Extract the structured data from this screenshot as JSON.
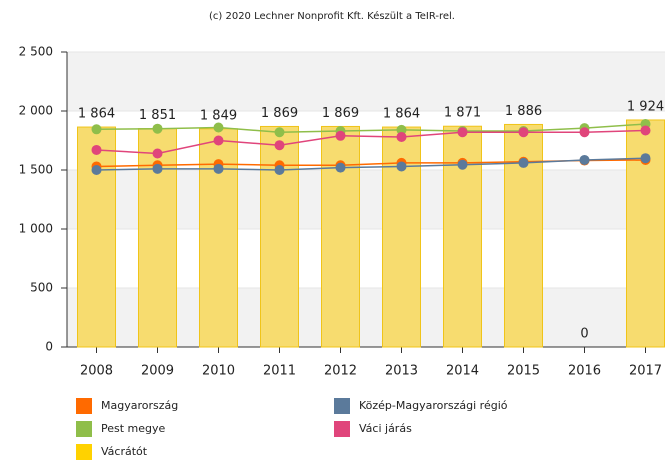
{
  "chart_data": {
    "type": "bar",
    "title": "(c) 2020 Lechner Nonprofit Kft. Készült a TeIR-rel.",
    "categories": [
      "2008",
      "2009",
      "2010",
      "2011",
      "2012",
      "2013",
      "2014",
      "2015",
      "2016",
      "2017"
    ],
    "series": [
      {
        "name": "Magyarország",
        "type": "line",
        "color": "#ff6a00",
        "values": [
          1530,
          1540,
          1550,
          1540,
          1540,
          1560,
          1560,
          1570,
          1580,
          1585
        ]
      },
      {
        "name": "Közép-Magyarországi régió",
        "type": "line",
        "color": "#5b7a9b",
        "values": [
          1500,
          1510,
          1510,
          1500,
          1520,
          1530,
          1545,
          1560,
          1585,
          1600
        ]
      },
      {
        "name": "Pest megye",
        "type": "line",
        "color": "#8fbe4a",
        "values": [
          1845,
          1850,
          1860,
          1820,
          1830,
          1840,
          1830,
          1830,
          1855,
          1890
        ]
      },
      {
        "name": "Váci járás",
        "type": "line",
        "color": "#e0457b",
        "values": [
          1670,
          1640,
          1750,
          1710,
          1790,
          1780,
          1820,
          1820,
          1820,
          1835
        ]
      },
      {
        "name": "Vácrátót",
        "type": "bar",
        "color": "#f7dc6f",
        "values": [
          1864,
          1851,
          1849,
          1869,
          1869,
          1864,
          1871,
          1886,
          0,
          1924
        ],
        "value_labels": [
          "1 864",
          "1 851",
          "1 849",
          "1 869",
          "1 869",
          "1 864",
          "1 871",
          "1 886",
          "0",
          "1 924"
        ]
      }
    ],
    "ylim": [
      0,
      2500
    ],
    "yticks": [
      0,
      500,
      {
        "value": 1000,
        "label": "1 000"
      },
      {
        "value": 1500,
        "label": "1 500"
      },
      {
        "value": 2000,
        "label": "2 000"
      },
      {
        "value": 2500,
        "label": "2 500"
      }
    ],
    "grid": true
  }
}
